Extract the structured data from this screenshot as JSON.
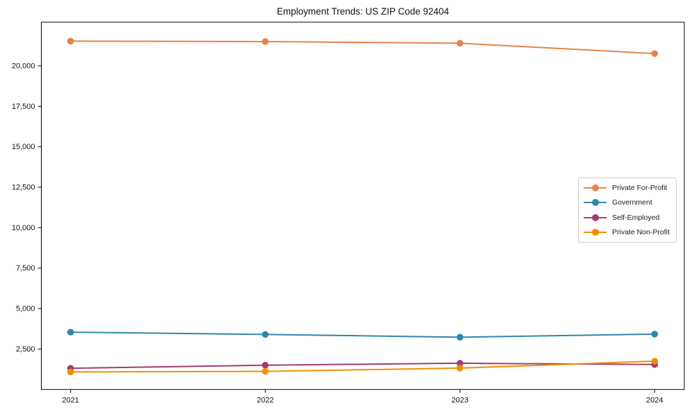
{
  "title": "Employment Trends: US ZIP Code 92404",
  "chart_data": {
    "type": "line",
    "title": "Employment Trends: US ZIP Code 92404",
    "x_categories": [
      "2021",
      "2022",
      "2023",
      "2024"
    ],
    "series": [
      {
        "name": "Private For-Profit",
        "color": "#E8824A",
        "values": [
          21530,
          21500,
          21400,
          20760
        ]
      },
      {
        "name": "Government",
        "color": "#2E86AB",
        "values": [
          3540,
          3400,
          3230,
          3420
        ]
      },
      {
        "name": "Self-Employed",
        "color": "#A23B72",
        "values": [
          1310,
          1500,
          1620,
          1540
        ]
      },
      {
        "name": "Private Non-Profit",
        "color": "#F18F01",
        "values": [
          1080,
          1120,
          1320,
          1750
        ]
      }
    ],
    "xlabel": "",
    "ylabel": "",
    "ylim": [
      0,
      22700
    ],
    "yticks": [
      2500,
      5000,
      7500,
      10000,
      12500,
      15000,
      17500,
      20000
    ],
    "ytick_labels": [
      "2,500",
      "5,000",
      "7,500",
      "10,000",
      "12,500",
      "15,000",
      "17,500",
      "20,000"
    ],
    "grid": false,
    "legend_position": "center right",
    "marker": "circle",
    "line_width": 2,
    "marker_radius": 4.8
  },
  "style": {
    "spine_color": "#000000",
    "tick_color": "#000000",
    "text_color": "#111111",
    "background": "#ffffff",
    "legend_border": "#cccccc"
  }
}
